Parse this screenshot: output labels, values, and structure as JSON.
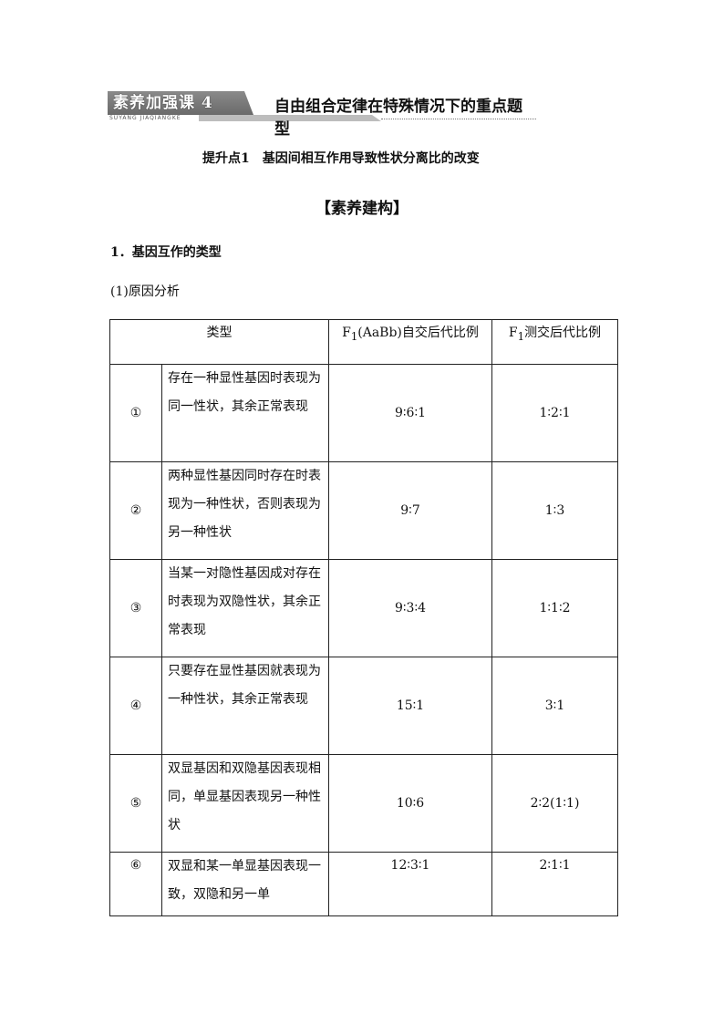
{
  "banner": {
    "badge": "素养加强课 4",
    "subtitle": "SUYANG JIAQIANGKE",
    "title": "自由组合定律在特殊情况下的重点题型"
  },
  "section": "提升点1　基因间相互作用导致性状分离比的改变",
  "bracket_title": "【素养建构】",
  "heading1": "1．基因互作的类型",
  "heading2": "(1)原因分析",
  "table": {
    "headers": {
      "type": "类型",
      "self_pre": "F",
      "self_sub": "1",
      "self_post": "(AaBb)自交后代比例",
      "test_pre": "F",
      "test_sub": "1",
      "test_post": "测交后代比例"
    },
    "rows": [
      {
        "num": "①",
        "desc": "存在一种显性基因时表现为同一性状，其余正常表现",
        "self": "9∶6∶1",
        "test": "1∶2∶1"
      },
      {
        "num": "②",
        "desc": "两种显性基因同时存在时表现为一种性状，否则表现为另一种性状",
        "self": "9∶7",
        "test": "1∶3"
      },
      {
        "num": "③",
        "desc": "当某一对隐性基因成对存在时表现为双隐性状，其余正常表现",
        "self": "9∶3∶4",
        "test": "1∶1∶2"
      },
      {
        "num": "④",
        "desc": "只要存在显性基因就表现为一种性状，其余正常表现",
        "self": "15∶1",
        "test": "3∶1"
      },
      {
        "num": "⑤",
        "desc": "双显基因和双隐基因表现相同，单显基因表现另一种性状",
        "self": "10∶6",
        "test": "2∶2(1∶1)"
      },
      {
        "num": "⑥",
        "desc": "双显和某一单显基因表现一致，双隐和另一单",
        "self": "12∶3∶1",
        "test": "2∶1∶1"
      }
    ]
  }
}
